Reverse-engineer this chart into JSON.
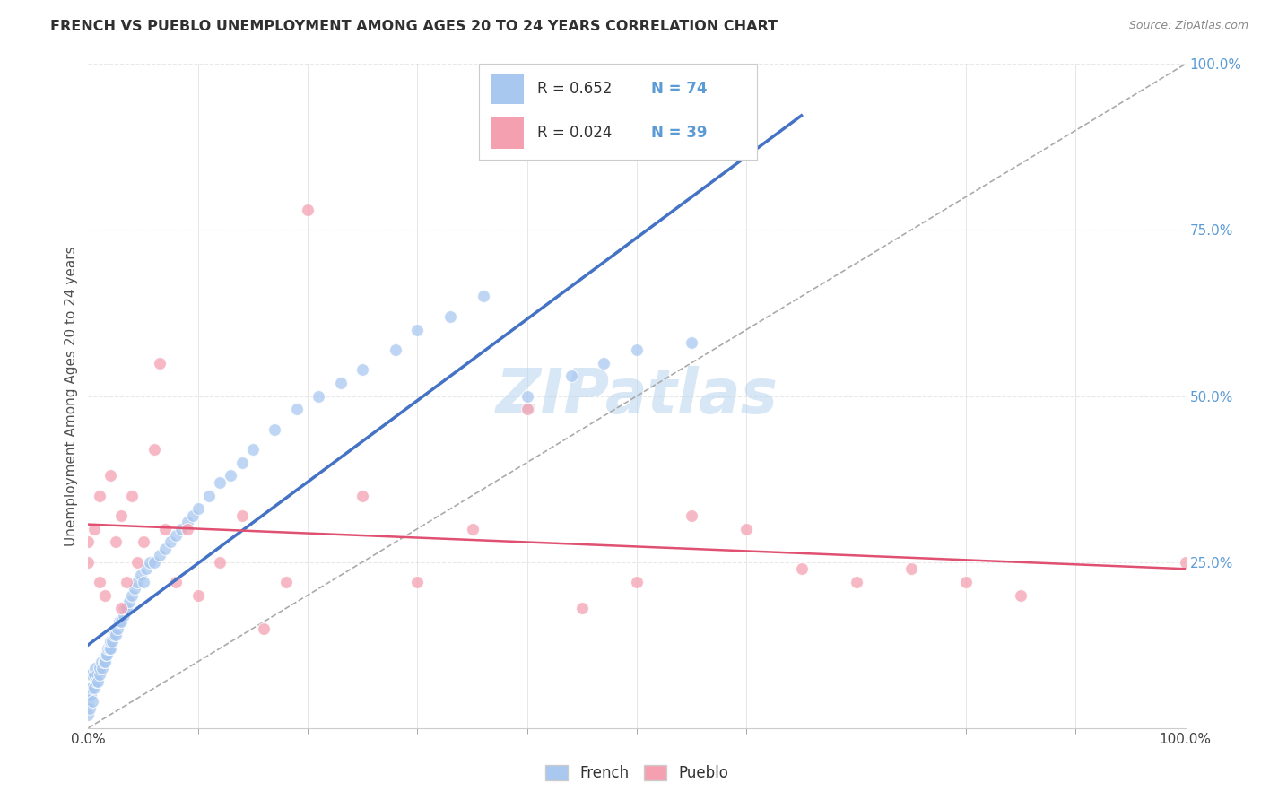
{
  "title": "FRENCH VS PUEBLO UNEMPLOYMENT AMONG AGES 20 TO 24 YEARS CORRELATION CHART",
  "source": "Source: ZipAtlas.com",
  "ylabel": "Unemployment Among Ages 20 to 24 years",
  "xlim": [
    0,
    1.0
  ],
  "ylim": [
    0,
    1.0
  ],
  "xtick_positions": [
    0.0,
    1.0
  ],
  "xtick_labels": [
    "0.0%",
    "100.0%"
  ],
  "right_ytick_positions": [
    0.25,
    0.5,
    0.75,
    1.0
  ],
  "right_ytick_labels": [
    "25.0%",
    "50.0%",
    "75.0%",
    "100.0%"
  ],
  "watermark": "ZIPatlas",
  "french_color": "#a8c8f0",
  "pueblo_color": "#f4a0b0",
  "french_R": 0.652,
  "french_N": 74,
  "pueblo_R": 0.024,
  "pueblo_N": 39,
  "french_x": [
    0.0,
    0.0,
    0.0,
    0.0,
    0.0,
    0.001,
    0.002,
    0.003,
    0.003,
    0.004,
    0.005,
    0.005,
    0.006,
    0.007,
    0.008,
    0.009,
    0.01,
    0.01,
    0.012,
    0.013,
    0.014,
    0.015,
    0.016,
    0.017,
    0.018,
    0.019,
    0.02,
    0.02,
    0.022,
    0.023,
    0.025,
    0.027,
    0.028,
    0.03,
    0.032,
    0.033,
    0.035,
    0.037,
    0.04,
    0.042,
    0.045,
    0.048,
    0.05,
    0.053,
    0.056,
    0.06,
    0.065,
    0.07,
    0.075,
    0.08,
    0.085,
    0.09,
    0.095,
    0.1,
    0.11,
    0.12,
    0.13,
    0.14,
    0.15,
    0.17,
    0.19,
    0.21,
    0.23,
    0.25,
    0.28,
    0.3,
    0.33,
    0.36,
    0.4,
    0.44,
    0.47,
    0.5,
    0.55,
    0.6
  ],
  "french_y": [
    0.02,
    0.04,
    0.05,
    0.06,
    0.08,
    0.03,
    0.05,
    0.06,
    0.08,
    0.04,
    0.06,
    0.08,
    0.09,
    0.07,
    0.08,
    0.07,
    0.08,
    0.09,
    0.1,
    0.09,
    0.1,
    0.1,
    0.11,
    0.11,
    0.12,
    0.12,
    0.12,
    0.13,
    0.13,
    0.14,
    0.14,
    0.15,
    0.16,
    0.16,
    0.17,
    0.18,
    0.18,
    0.19,
    0.2,
    0.21,
    0.22,
    0.23,
    0.22,
    0.24,
    0.25,
    0.25,
    0.26,
    0.27,
    0.28,
    0.29,
    0.3,
    0.31,
    0.32,
    0.33,
    0.35,
    0.37,
    0.38,
    0.4,
    0.42,
    0.45,
    0.48,
    0.5,
    0.52,
    0.54,
    0.57,
    0.6,
    0.62,
    0.65,
    0.5,
    0.53,
    0.55,
    0.57,
    0.58,
    0.9
  ],
  "pueblo_x": [
    0.0,
    0.0,
    0.005,
    0.01,
    0.01,
    0.015,
    0.02,
    0.025,
    0.03,
    0.03,
    0.035,
    0.04,
    0.045,
    0.05,
    0.06,
    0.065,
    0.07,
    0.08,
    0.09,
    0.1,
    0.12,
    0.14,
    0.16,
    0.18,
    0.2,
    0.25,
    0.3,
    0.35,
    0.4,
    0.45,
    0.5,
    0.55,
    0.6,
    0.65,
    0.7,
    0.75,
    0.8,
    0.85,
    1.0
  ],
  "pueblo_y": [
    0.25,
    0.28,
    0.3,
    0.35,
    0.22,
    0.2,
    0.38,
    0.28,
    0.18,
    0.32,
    0.22,
    0.35,
    0.25,
    0.28,
    0.42,
    0.55,
    0.3,
    0.22,
    0.3,
    0.2,
    0.25,
    0.32,
    0.15,
    0.22,
    0.78,
    0.35,
    0.22,
    0.3,
    0.48,
    0.18,
    0.22,
    0.32,
    0.3,
    0.24,
    0.22,
    0.24,
    0.22,
    0.2,
    0.25
  ],
  "diagonal_line_color": "#aaaaaa",
  "french_line_color": "#4472c4",
  "pueblo_line_color": "#e05070",
  "grid_color": "#e8e8e8",
  "background_color": "#ffffff",
  "tick_color_right": "#5b9bd5",
  "tick_color_bottom": "#404040",
  "minor_tick_x": [
    0.1,
    0.2,
    0.3,
    0.4,
    0.5,
    0.6,
    0.7,
    0.8,
    0.9
  ]
}
